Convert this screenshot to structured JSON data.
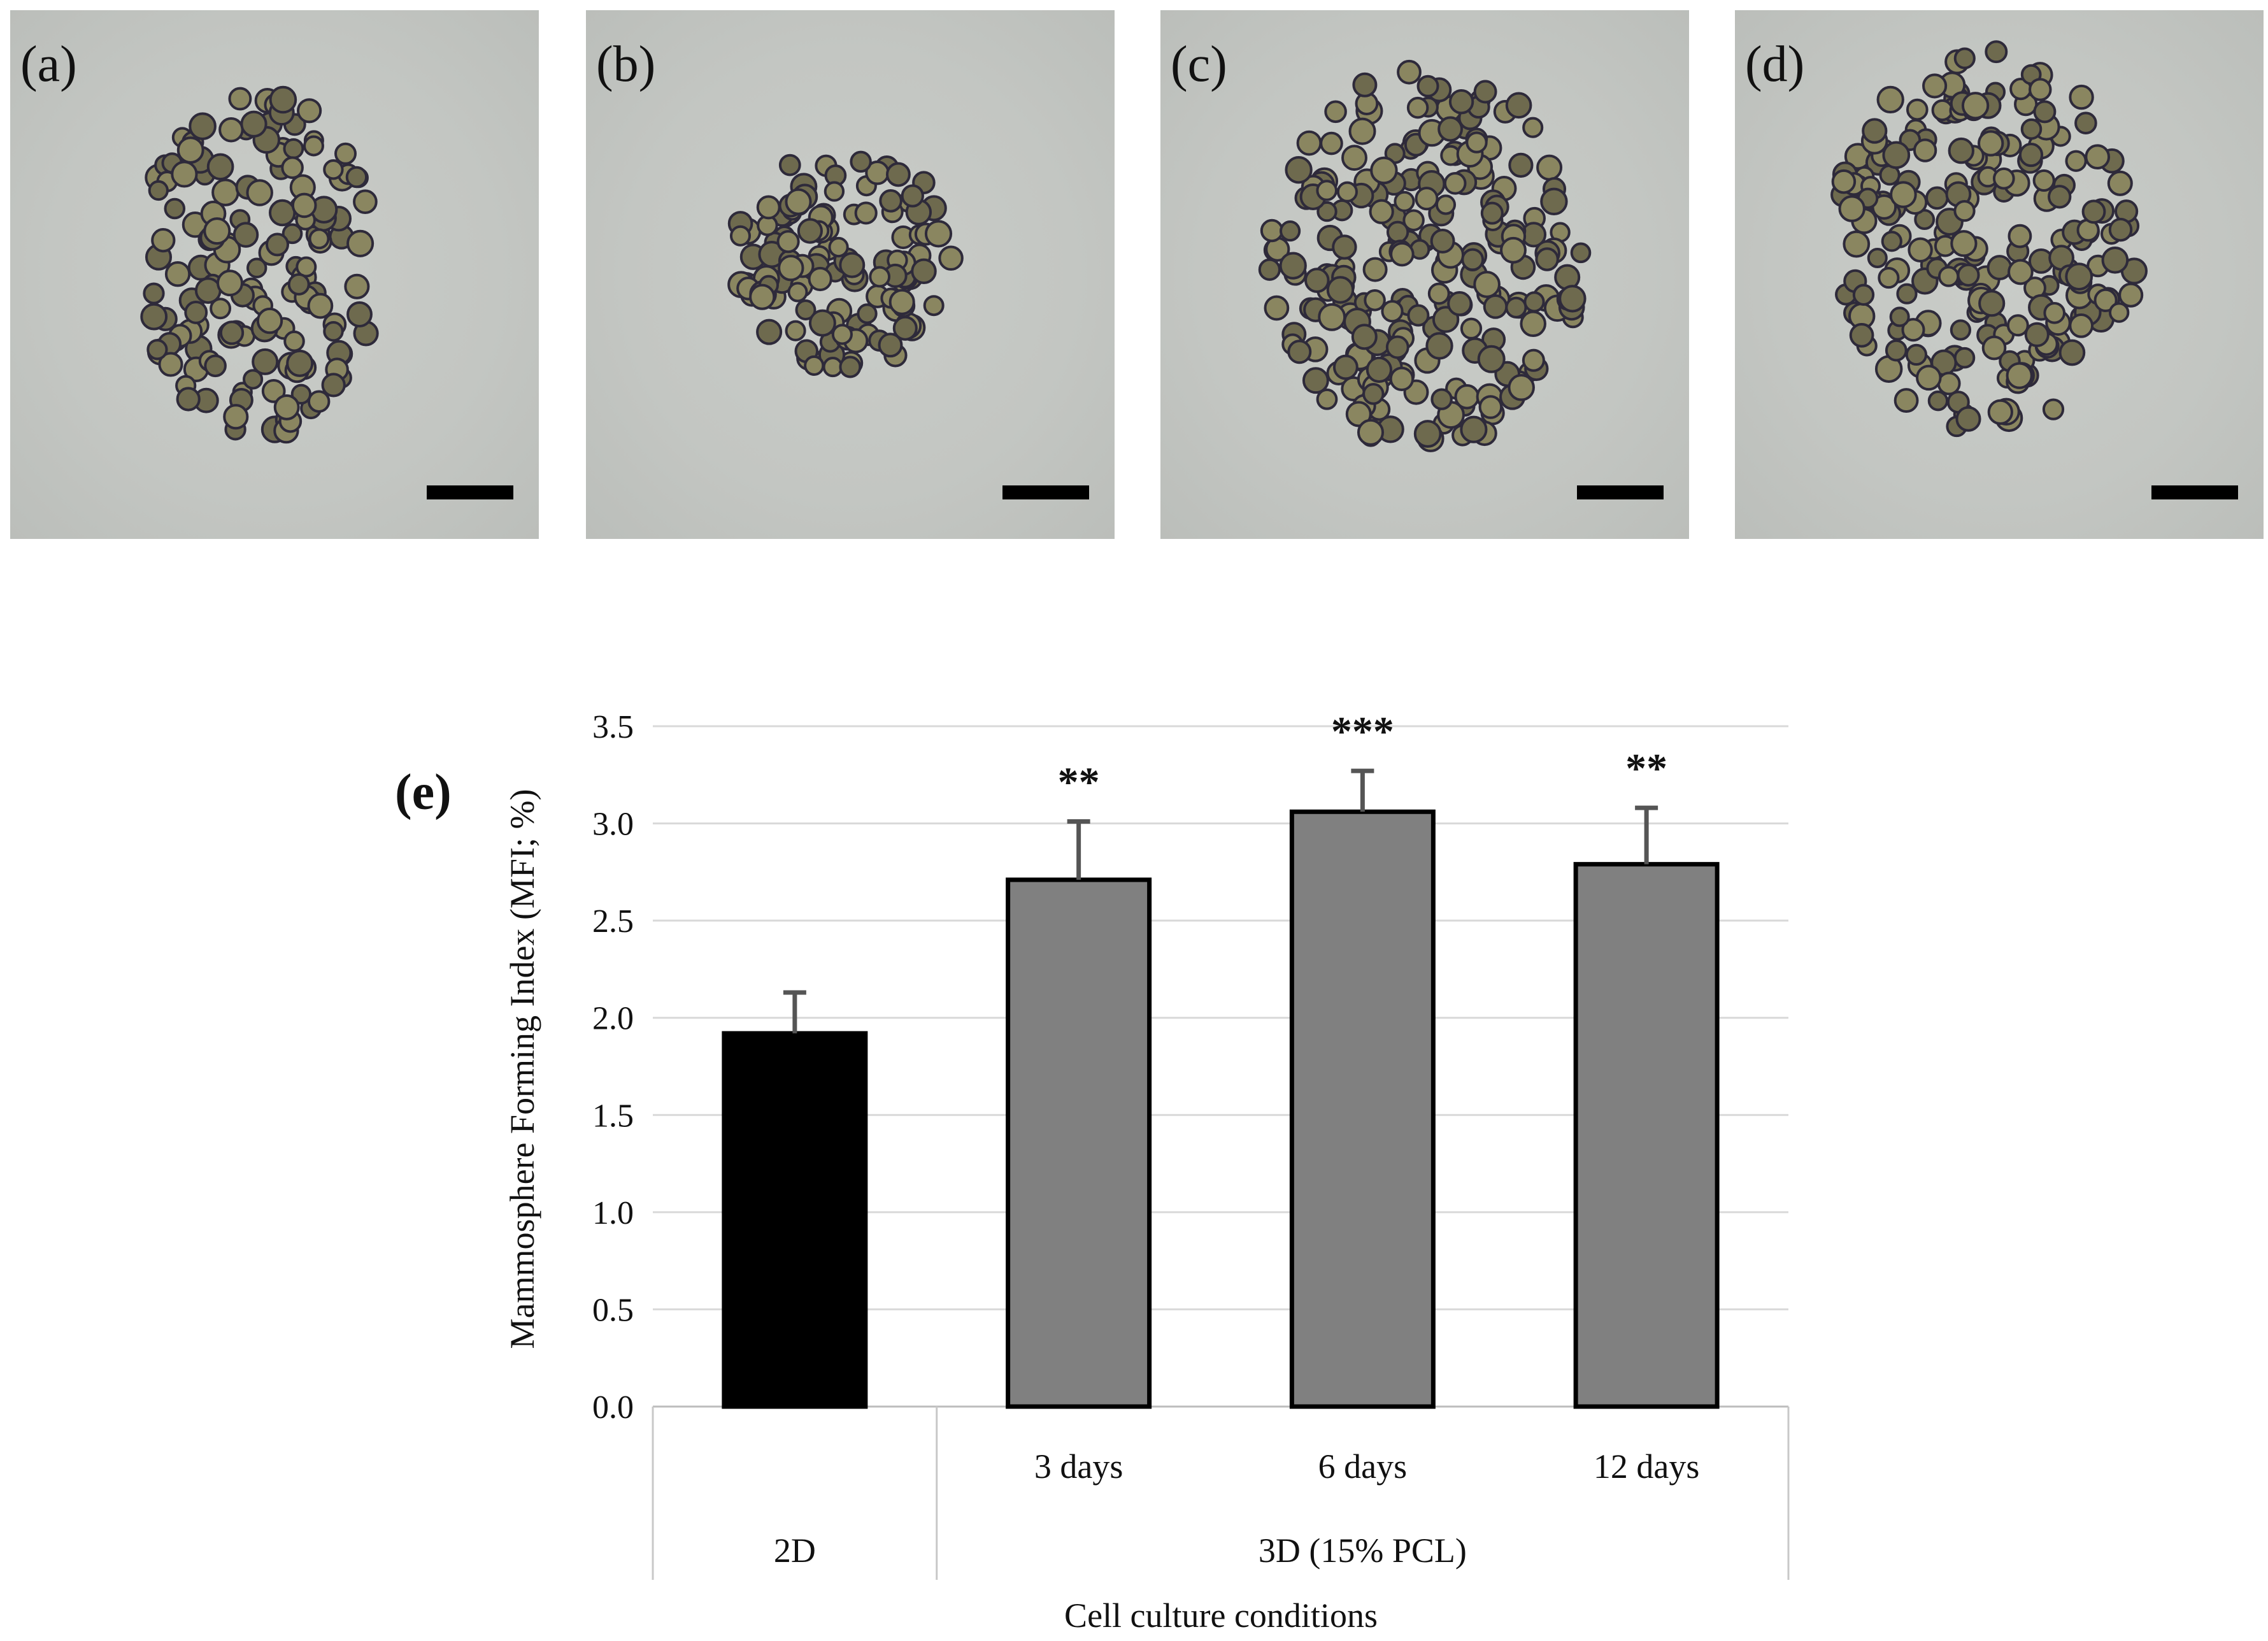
{
  "panels": [
    {
      "label": "(a)"
    },
    {
      "label": "(b)"
    },
    {
      "label": "(c)"
    },
    {
      "label": "(d)"
    }
  ],
  "chart_label": "(e)",
  "chart_data": {
    "type": "bar",
    "categories": [
      "",
      "3 days",
      "6 days",
      "12 days"
    ],
    "groups": [
      {
        "label": "2D",
        "span": [
          0,
          0
        ]
      },
      {
        "label": "3D (15% PCL)",
        "span": [
          1,
          3
        ]
      }
    ],
    "values": [
      1.92,
      2.71,
      3.06,
      2.79
    ],
    "errors": [
      0.21,
      0.3,
      0.21,
      0.29
    ],
    "significance": [
      "",
      "**",
      "***",
      "**"
    ],
    "bar_colors": [
      "#000000",
      "#808080",
      "#808080",
      "#808080"
    ],
    "ylabel": "Mammosphere Forming Index (MFI; %)",
    "xlabel": "Cell culture conditions",
    "ylim": [
      0,
      3.5
    ],
    "yticks": [
      "0.0",
      "0.5",
      "1.0",
      "1.5",
      "2.0",
      "2.5",
      "3.0",
      "3.5"
    ],
    "grid": true
  }
}
